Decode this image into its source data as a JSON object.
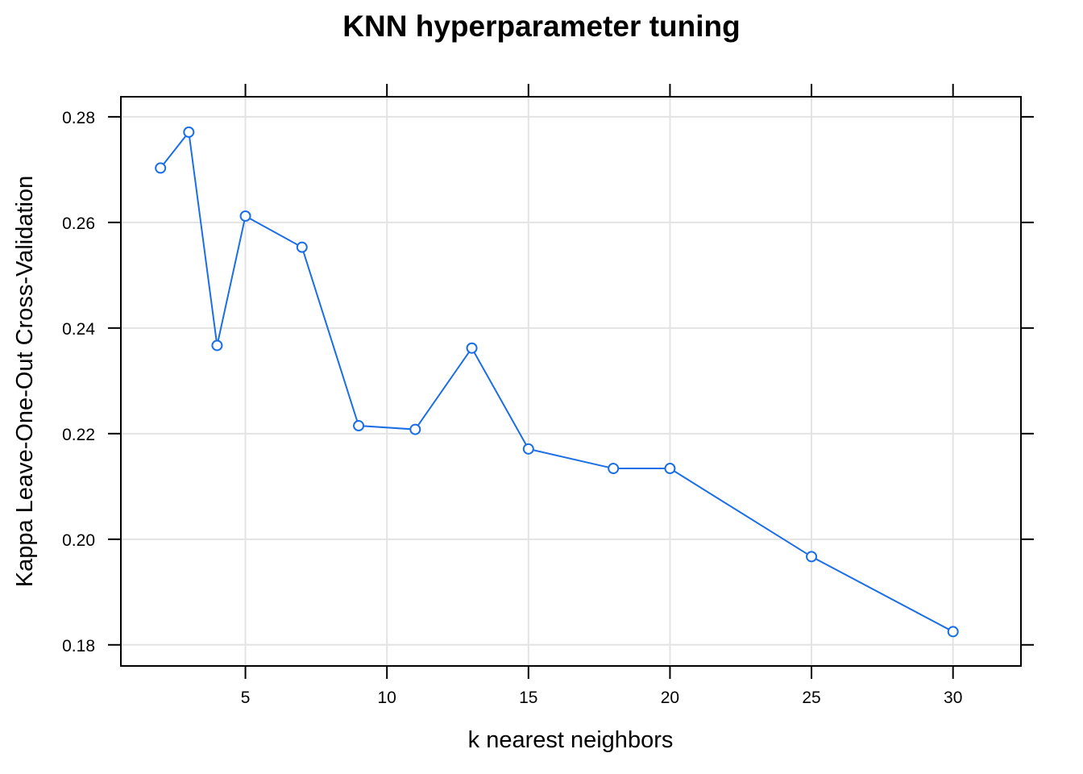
{
  "chart_data": {
    "type": "line",
    "title": "KNN hyperparameter tuning",
    "xlabel": "k nearest neighbors",
    "ylabel": "Kappa Leave-One-Out Cross-Validation",
    "xlim": [
      0.6,
      32.4
    ],
    "ylim": [
      0.176,
      0.2838
    ],
    "x_ticks": [
      5,
      10,
      15,
      20,
      25,
      30
    ],
    "y_ticks": [
      0.18,
      0.2,
      0.22,
      0.24,
      0.26,
      0.28
    ],
    "x_tick_labels": [
      "5",
      "10",
      "15",
      "20",
      "25",
      "30"
    ],
    "y_tick_labels": [
      "0.18",
      "0.20",
      "0.22",
      "0.24",
      "0.26",
      "0.28"
    ],
    "grid": true,
    "series": [
      {
        "color": "#1a6ee6",
        "x": [
          2,
          3,
          4,
          5,
          7,
          9,
          11,
          13,
          15,
          18,
          20,
          25,
          30
        ],
        "y": [
          0.2703,
          0.2771,
          0.2367,
          0.2612,
          0.2553,
          0.2215,
          0.2208,
          0.2362,
          0.2171,
          0.2134,
          0.2134,
          0.1967,
          0.1825
        ]
      }
    ]
  }
}
